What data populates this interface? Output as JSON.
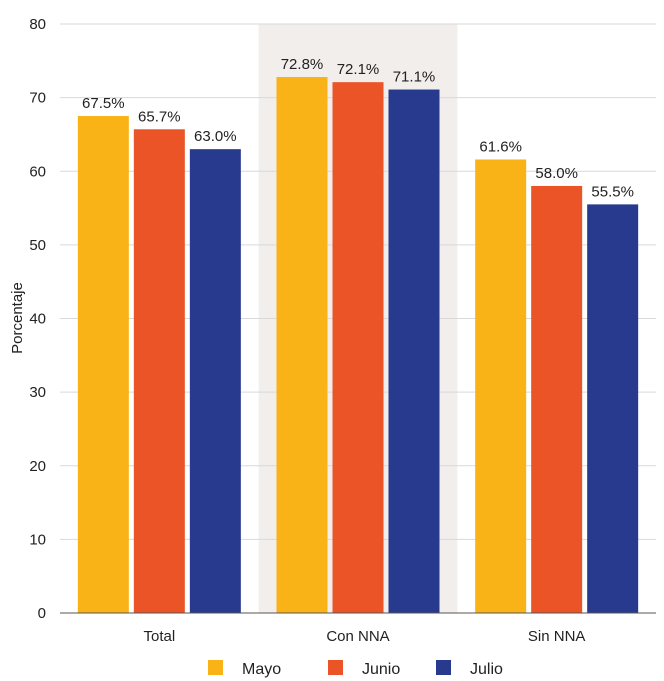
{
  "chart_data": {
    "type": "bar",
    "categories": [
      "Total",
      "Con NNA",
      "Sin NNA"
    ],
    "series": [
      {
        "name": "Mayo",
        "values": [
          67.5,
          72.8,
          61.6
        ],
        "color": "#F9B316"
      },
      {
        "name": "Junio",
        "values": [
          65.7,
          72.1,
          58.0
        ],
        "color": "#EA5427"
      },
      {
        "name": "Julio",
        "values": [
          63.0,
          71.1,
          55.5
        ],
        "color": "#283A8E"
      }
    ],
    "value_labels": [
      [
        "67.5%",
        "72.8%",
        "61.6%"
      ],
      [
        "65.7%",
        "72.1%",
        "58.0%"
      ],
      [
        "63.0%",
        "71.1%",
        "55.5%"
      ]
    ],
    "ylabel": "Porcentaje",
    "xlabel": "",
    "ylim": [
      0,
      80
    ],
    "yticks": [
      "0",
      "10",
      "20",
      "30",
      "40",
      "50",
      "60",
      "70",
      "80"
    ],
    "grid": true,
    "highlight_category": "Con NNA",
    "highlight_color": "#F1EEEC",
    "legend_position": "bottom"
  }
}
